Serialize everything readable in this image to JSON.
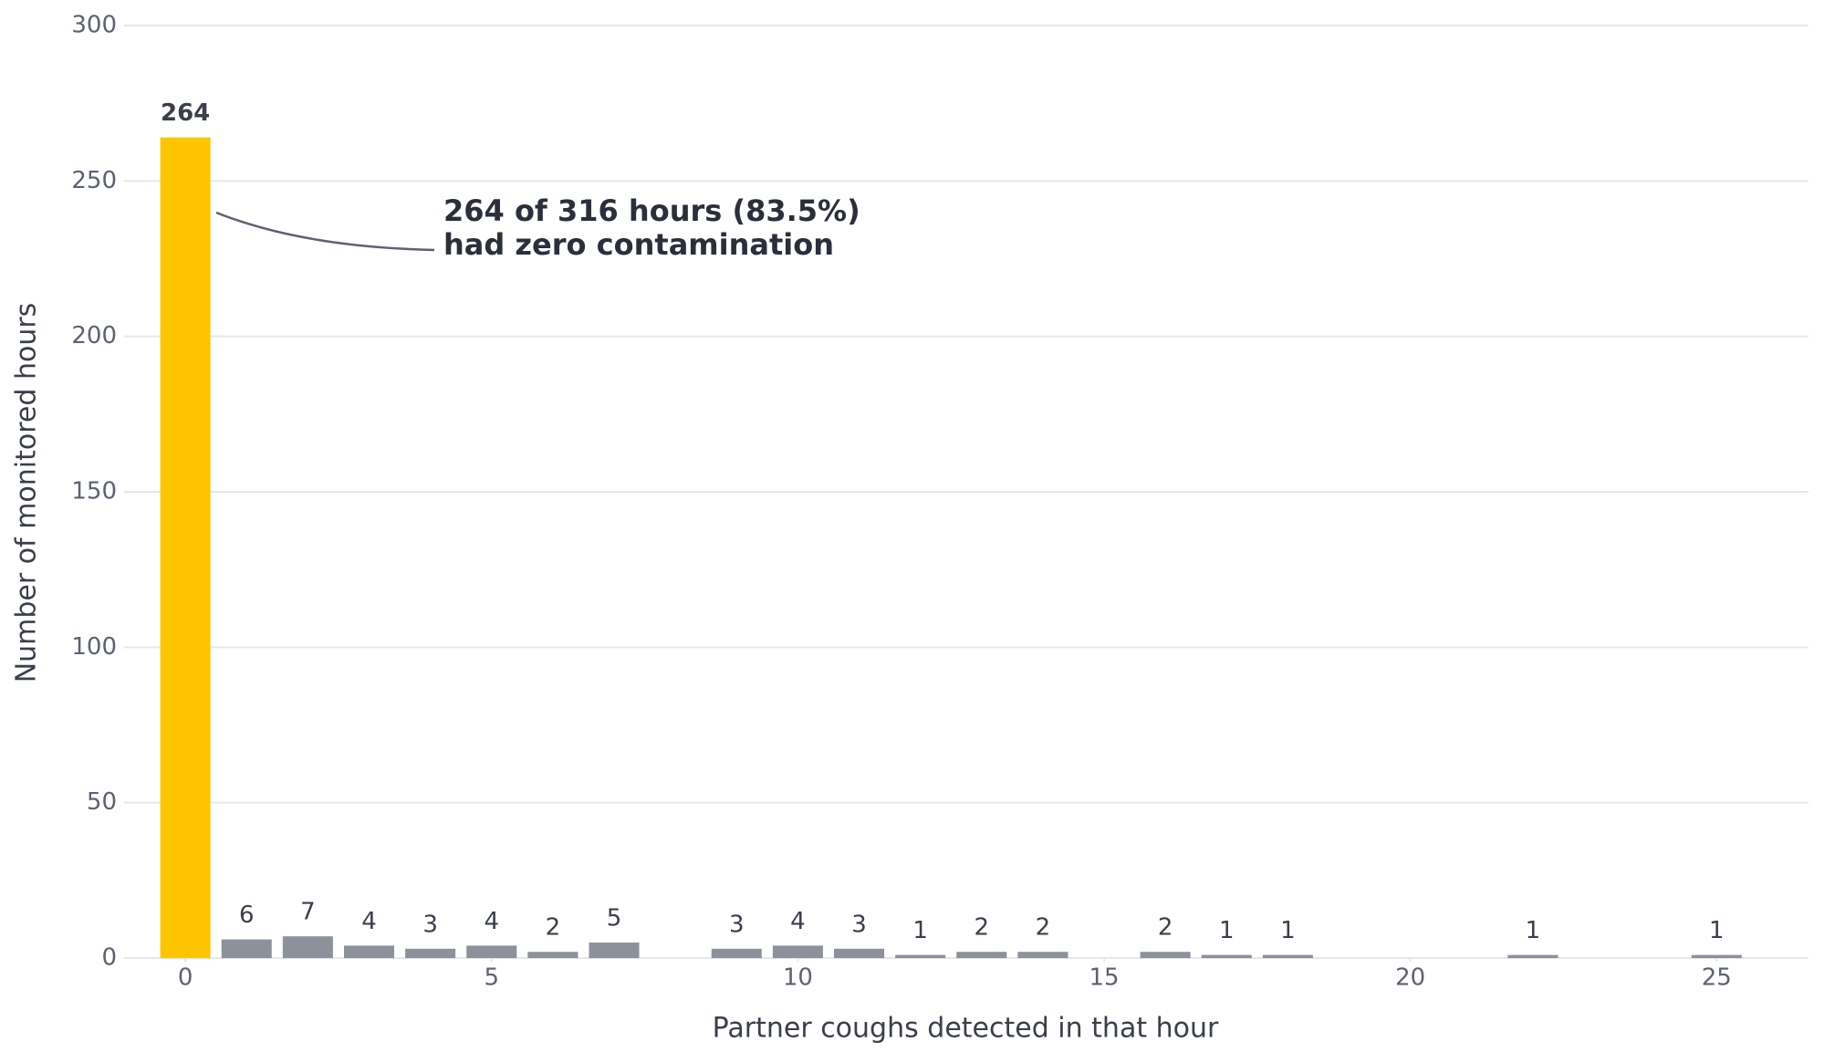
{
  "chart_data": {
    "type": "bar",
    "x_label": "Partner coughs detected in that hour",
    "y_label": "Number of monitored hours",
    "x": [
      0,
      1,
      2,
      3,
      4,
      5,
      6,
      7,
      9,
      10,
      11,
      12,
      13,
      14,
      16,
      17,
      18,
      22,
      25
    ],
    "values": [
      264,
      6,
      7,
      4,
      3,
      4,
      2,
      5,
      3,
      4,
      3,
      1,
      2,
      2,
      2,
      1,
      1,
      1,
      1
    ],
    "colors": [
      "#ffc400",
      "#8c919b",
      "#8c919b",
      "#8c919b",
      "#8c919b",
      "#8c919b",
      "#8c919b",
      "#8c919b",
      "#8c919b",
      "#8c919b",
      "#8c919b",
      "#8c919b",
      "#8c919b",
      "#8c919b",
      "#8c919b",
      "#8c919b",
      "#8c919b",
      "#8c919b",
      "#8c919b"
    ],
    "xlim": [
      -1,
      26.5
    ],
    "xticks": [
      0,
      5,
      10,
      15,
      20,
      25
    ],
    "ylim": [
      0,
      300
    ],
    "yticks": [
      0,
      50,
      100,
      150,
      200,
      250,
      300
    ],
    "grid": true,
    "annotation": [
      "264 of 316 hours (83.5%)",
      "had zero contamination"
    ]
  }
}
